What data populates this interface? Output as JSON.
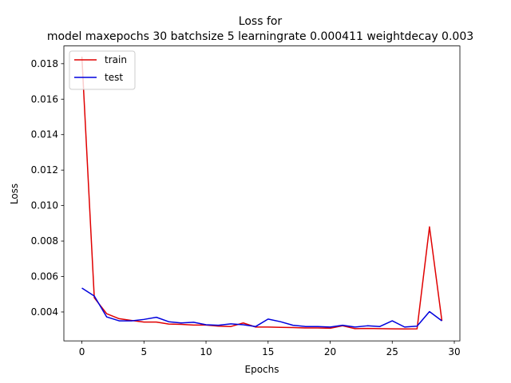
{
  "chart_data": {
    "type": "line",
    "title_line1": "Loss for",
    "title_line2": "model maxepochs 30 batchsize 5 learningrate 0.000411 weightdecay 0.003",
    "xlabel": "Epochs",
    "ylabel": "Loss",
    "xlim": [
      -1.45,
      30.45
    ],
    "ylim": [
      0.00237,
      0.019
    ],
    "x_ticks": [
      0,
      5,
      10,
      15,
      20,
      25,
      30
    ],
    "y_ticks": [
      0.004,
      0.006,
      0.008,
      0.01,
      0.012,
      0.014,
      0.016,
      0.018
    ],
    "y_tick_labels": [
      "0.004",
      "0.006",
      "0.008",
      "0.010",
      "0.012",
      "0.014",
      "0.016",
      "0.018"
    ],
    "grid": false,
    "legend_position": "top-left",
    "x": [
      0,
      1,
      2,
      3,
      4,
      5,
      6,
      7,
      8,
      9,
      10,
      11,
      12,
      13,
      14,
      15,
      16,
      17,
      18,
      19,
      20,
      21,
      22,
      23,
      24,
      25,
      26,
      27,
      28,
      29
    ],
    "series": [
      {
        "name": "train",
        "color": "#e00000",
        "values": [
          0.0184,
          0.0048,
          0.0039,
          0.00362,
          0.00352,
          0.00343,
          0.00343,
          0.00332,
          0.0033,
          0.00326,
          0.00326,
          0.0032,
          0.00318,
          0.00338,
          0.00315,
          0.00315,
          0.00313,
          0.00312,
          0.0031,
          0.0031,
          0.00308,
          0.00322,
          0.00306,
          0.00307,
          0.00306,
          0.00305,
          0.00304,
          0.00305,
          0.0088,
          0.0035
        ]
      },
      {
        "name": "test",
        "color": "#0000dd",
        "values": [
          0.00535,
          0.0049,
          0.00372,
          0.0035,
          0.0035,
          0.00358,
          0.0037,
          0.00345,
          0.00338,
          0.00342,
          0.00328,
          0.00325,
          0.00333,
          0.00328,
          0.00318,
          0.0036,
          0.00345,
          0.00325,
          0.00318,
          0.00318,
          0.00315,
          0.00325,
          0.00315,
          0.00322,
          0.00318,
          0.0035,
          0.00315,
          0.0032,
          0.00402,
          0.0035
        ]
      }
    ]
  }
}
